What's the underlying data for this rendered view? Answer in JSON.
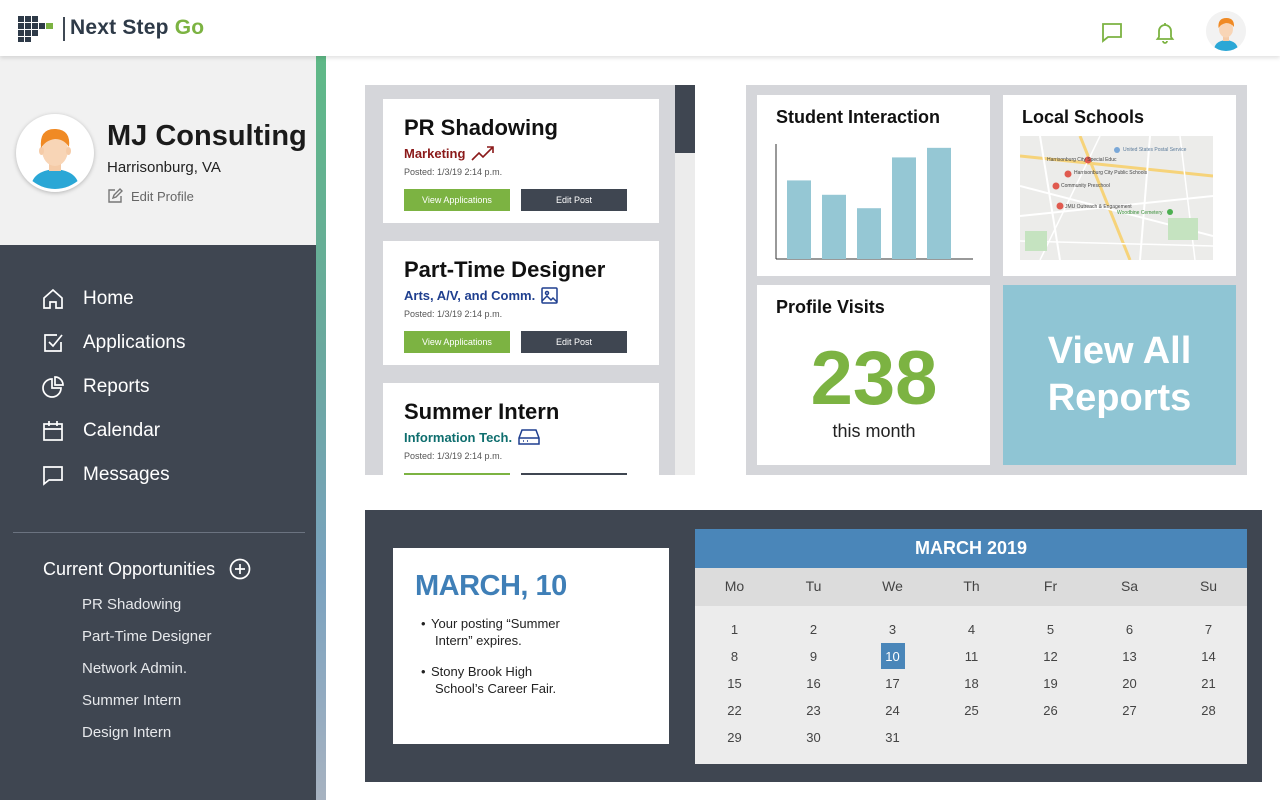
{
  "app": {
    "logo_name": "Next Step ",
    "logo_go": "Go",
    "brand_green": "#7cb342",
    "brand_dark": "#3f4651",
    "brand_blue": "#4a86b9"
  },
  "header": {
    "icons": [
      "chat-icon",
      "bell-icon",
      "user-avatar"
    ]
  },
  "profile": {
    "name": "MJ Consulting",
    "location": "Harrisonburg, VA",
    "edit_label": "Edit Profile"
  },
  "nav": {
    "items": [
      {
        "label": "Home",
        "icon": "home-icon"
      },
      {
        "label": "Applications",
        "icon": "checkbox-icon"
      },
      {
        "label": "Reports",
        "icon": "pie-chart-icon"
      },
      {
        "label": "Calendar",
        "icon": "calendar-icon"
      },
      {
        "label": "Messages",
        "icon": "message-icon"
      }
    ]
  },
  "opportunities": {
    "title": "Current Opportunities",
    "items": [
      "PR Shadowing",
      "Part-Time Designer",
      "Network Admin.",
      "Summer Intern",
      "Design Intern"
    ]
  },
  "posts": [
    {
      "title": "PR Shadowing",
      "category": "Marketing",
      "category_color": "#8b1a1a",
      "icon": "trending-up-icon",
      "posted": "Posted: 1/3/19 2:14 p.m.",
      "view_label": "View Applications",
      "edit_label": "Edit Post"
    },
    {
      "title": "Part-Time Designer",
      "category": "Arts, A/V, and Comm.",
      "category_color": "#1f3f8f",
      "icon": "image-icon",
      "posted": "Posted: 1/3/19 2:14 p.m.",
      "view_label": "View Applications",
      "edit_label": "Edit Post"
    },
    {
      "title": "Summer Intern",
      "category": "Information Tech.",
      "category_color": "#0e6e6e",
      "icon": "hard-drive-icon",
      "posted": "Posted: 1/3/19 2:14 p.m."
    }
  ],
  "stats": {
    "interaction_title": "Student Interaction",
    "schools_title": "Local Schools",
    "map_labels": [
      "Harrisonburg City Special Educ",
      "United States Postal Service",
      "Harrisonburg City Public Schools",
      "Community Preschool",
      "JMU Outreach & Engagement",
      "Woodbine Cemetery"
    ],
    "visits_title": "Profile Visits",
    "visits_value": "238",
    "visits_label": "this month",
    "view_all_line1": "View All",
    "view_all_line2": "Reports"
  },
  "chart_data": {
    "type": "bar",
    "series": [
      {
        "values": [
          82,
          67,
          53,
          106,
          116
        ]
      }
    ],
    "ylim": [
      0,
      120
    ]
  },
  "event": {
    "date": "MARCH, 10",
    "items": [
      {
        "line1": "Your posting “Summer",
        "line2": "Intern” expires."
      },
      {
        "line1": "Stony Brook High",
        "line2": "School’s Career Fair."
      }
    ]
  },
  "calendar": {
    "title": "MARCH  2019",
    "weekdays": [
      "Mo",
      "Tu",
      "We",
      "Th",
      "Fr",
      "Sa",
      "Su"
    ],
    "weeks": [
      [
        "1",
        "2",
        "3",
        "4",
        "5",
        "6",
        "7"
      ],
      [
        "8",
        "9",
        "10",
        "11",
        "12",
        "13",
        "14"
      ],
      [
        "15",
        "16",
        "17",
        "18",
        "19",
        "20",
        "21"
      ],
      [
        "22",
        "23",
        "24",
        "25",
        "26",
        "27",
        "28"
      ],
      [
        "29",
        "30",
        "31"
      ]
    ],
    "selected": "10"
  }
}
